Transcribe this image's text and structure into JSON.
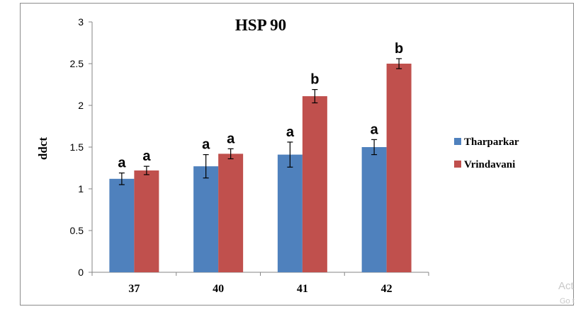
{
  "chart_data": {
    "type": "bar",
    "title": "HSP 90",
    "ylabel": "ddct",
    "xlabel": "",
    "categories": [
      "37",
      "40",
      "41",
      "42"
    ],
    "ylim": [
      0,
      3
    ],
    "yticks": [
      "0",
      "0.5",
      "1",
      "1.5",
      "2",
      "2.5",
      "3"
    ],
    "grid": false,
    "legend_position": "right",
    "series": [
      {
        "name": "Tharparkar",
        "color": "#4f81bd",
        "values": [
          1.12,
          1.27,
          1.41,
          1.5
        ],
        "errors": [
          0.07,
          0.14,
          0.15,
          0.09
        ],
        "labels": [
          "a",
          "a",
          "a",
          "a"
        ]
      },
      {
        "name": "Vrindavani",
        "color": "#c0504d",
        "values": [
          1.22,
          1.42,
          2.11,
          2.5
        ],
        "errors": [
          0.05,
          0.06,
          0.08,
          0.06
        ],
        "labels": [
          "a",
          "a",
          "b",
          "b"
        ]
      }
    ]
  },
  "watermark": {
    "line1": "Act",
    "line2": "Go t"
  }
}
